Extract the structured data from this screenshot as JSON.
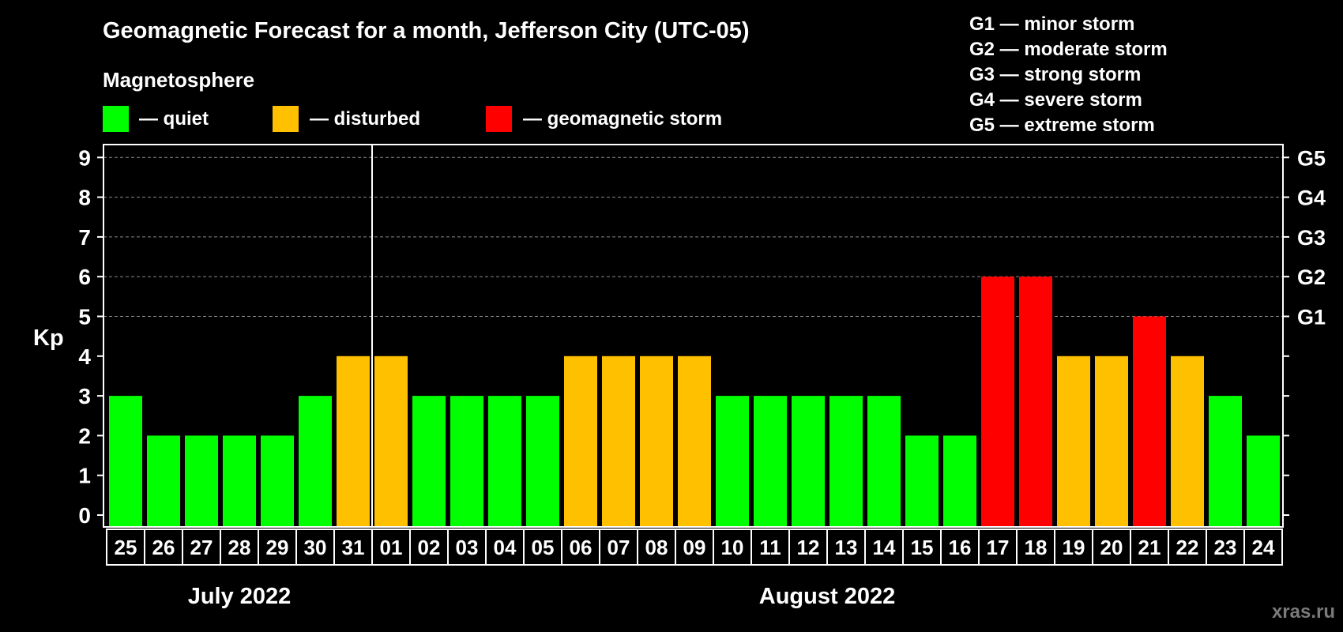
{
  "chart_data": {
    "type": "bar",
    "title": "Geomagnetic Forecast for a month, Jefferson City (UTC-05)",
    "legend_title": "Magnetosphere",
    "legend": [
      {
        "label": "— quiet",
        "color": "#00ff00"
      },
      {
        "label": "— disturbed",
        "color": "#ffc000"
      },
      {
        "label": "— geomagnetic storm",
        "color": "#ff0000"
      }
    ],
    "storm_scale": [
      "G1 — minor storm",
      "G2 — moderate storm",
      "G3 — strong storm",
      "G4 — severe storm",
      "G5 — extreme storm"
    ],
    "ylabel": "Kp",
    "ylim": [
      0,
      9
    ],
    "y_ticks": [
      "0",
      "1",
      "2",
      "3",
      "4",
      "5",
      "6",
      "7",
      "8",
      "9"
    ],
    "right_ticks": [
      {
        "value": 5,
        "label": "G1"
      },
      {
        "value": 6,
        "label": "G2"
      },
      {
        "value": 7,
        "label": "G3"
      },
      {
        "value": 8,
        "label": "G4"
      },
      {
        "value": 9,
        "label": "G5"
      }
    ],
    "grid": "dashed horizontal at Kp 5–9",
    "categories": [
      "25",
      "26",
      "27",
      "28",
      "29",
      "30",
      "31",
      "01",
      "02",
      "03",
      "04",
      "05",
      "06",
      "07",
      "08",
      "09",
      "10",
      "11",
      "12",
      "13",
      "14",
      "15",
      "16",
      "17",
      "18",
      "19",
      "20",
      "21",
      "22",
      "23",
      "24"
    ],
    "values": [
      3,
      2,
      2,
      2,
      2,
      3,
      4,
      4,
      3,
      3,
      3,
      3,
      4,
      4,
      4,
      4,
      3,
      3,
      3,
      3,
      3,
      2,
      2,
      6,
      6,
      4,
      4,
      5,
      4,
      3,
      2
    ],
    "colors": {
      "quiet": "#00ff00",
      "disturbed": "#ffc000",
      "storm": "#ff0000"
    },
    "months": [
      {
        "label": "July 2022",
        "start": 0,
        "end": 6
      },
      {
        "label": "August 2022",
        "start": 7,
        "end": 30
      }
    ],
    "watermark": "xras.ru"
  }
}
